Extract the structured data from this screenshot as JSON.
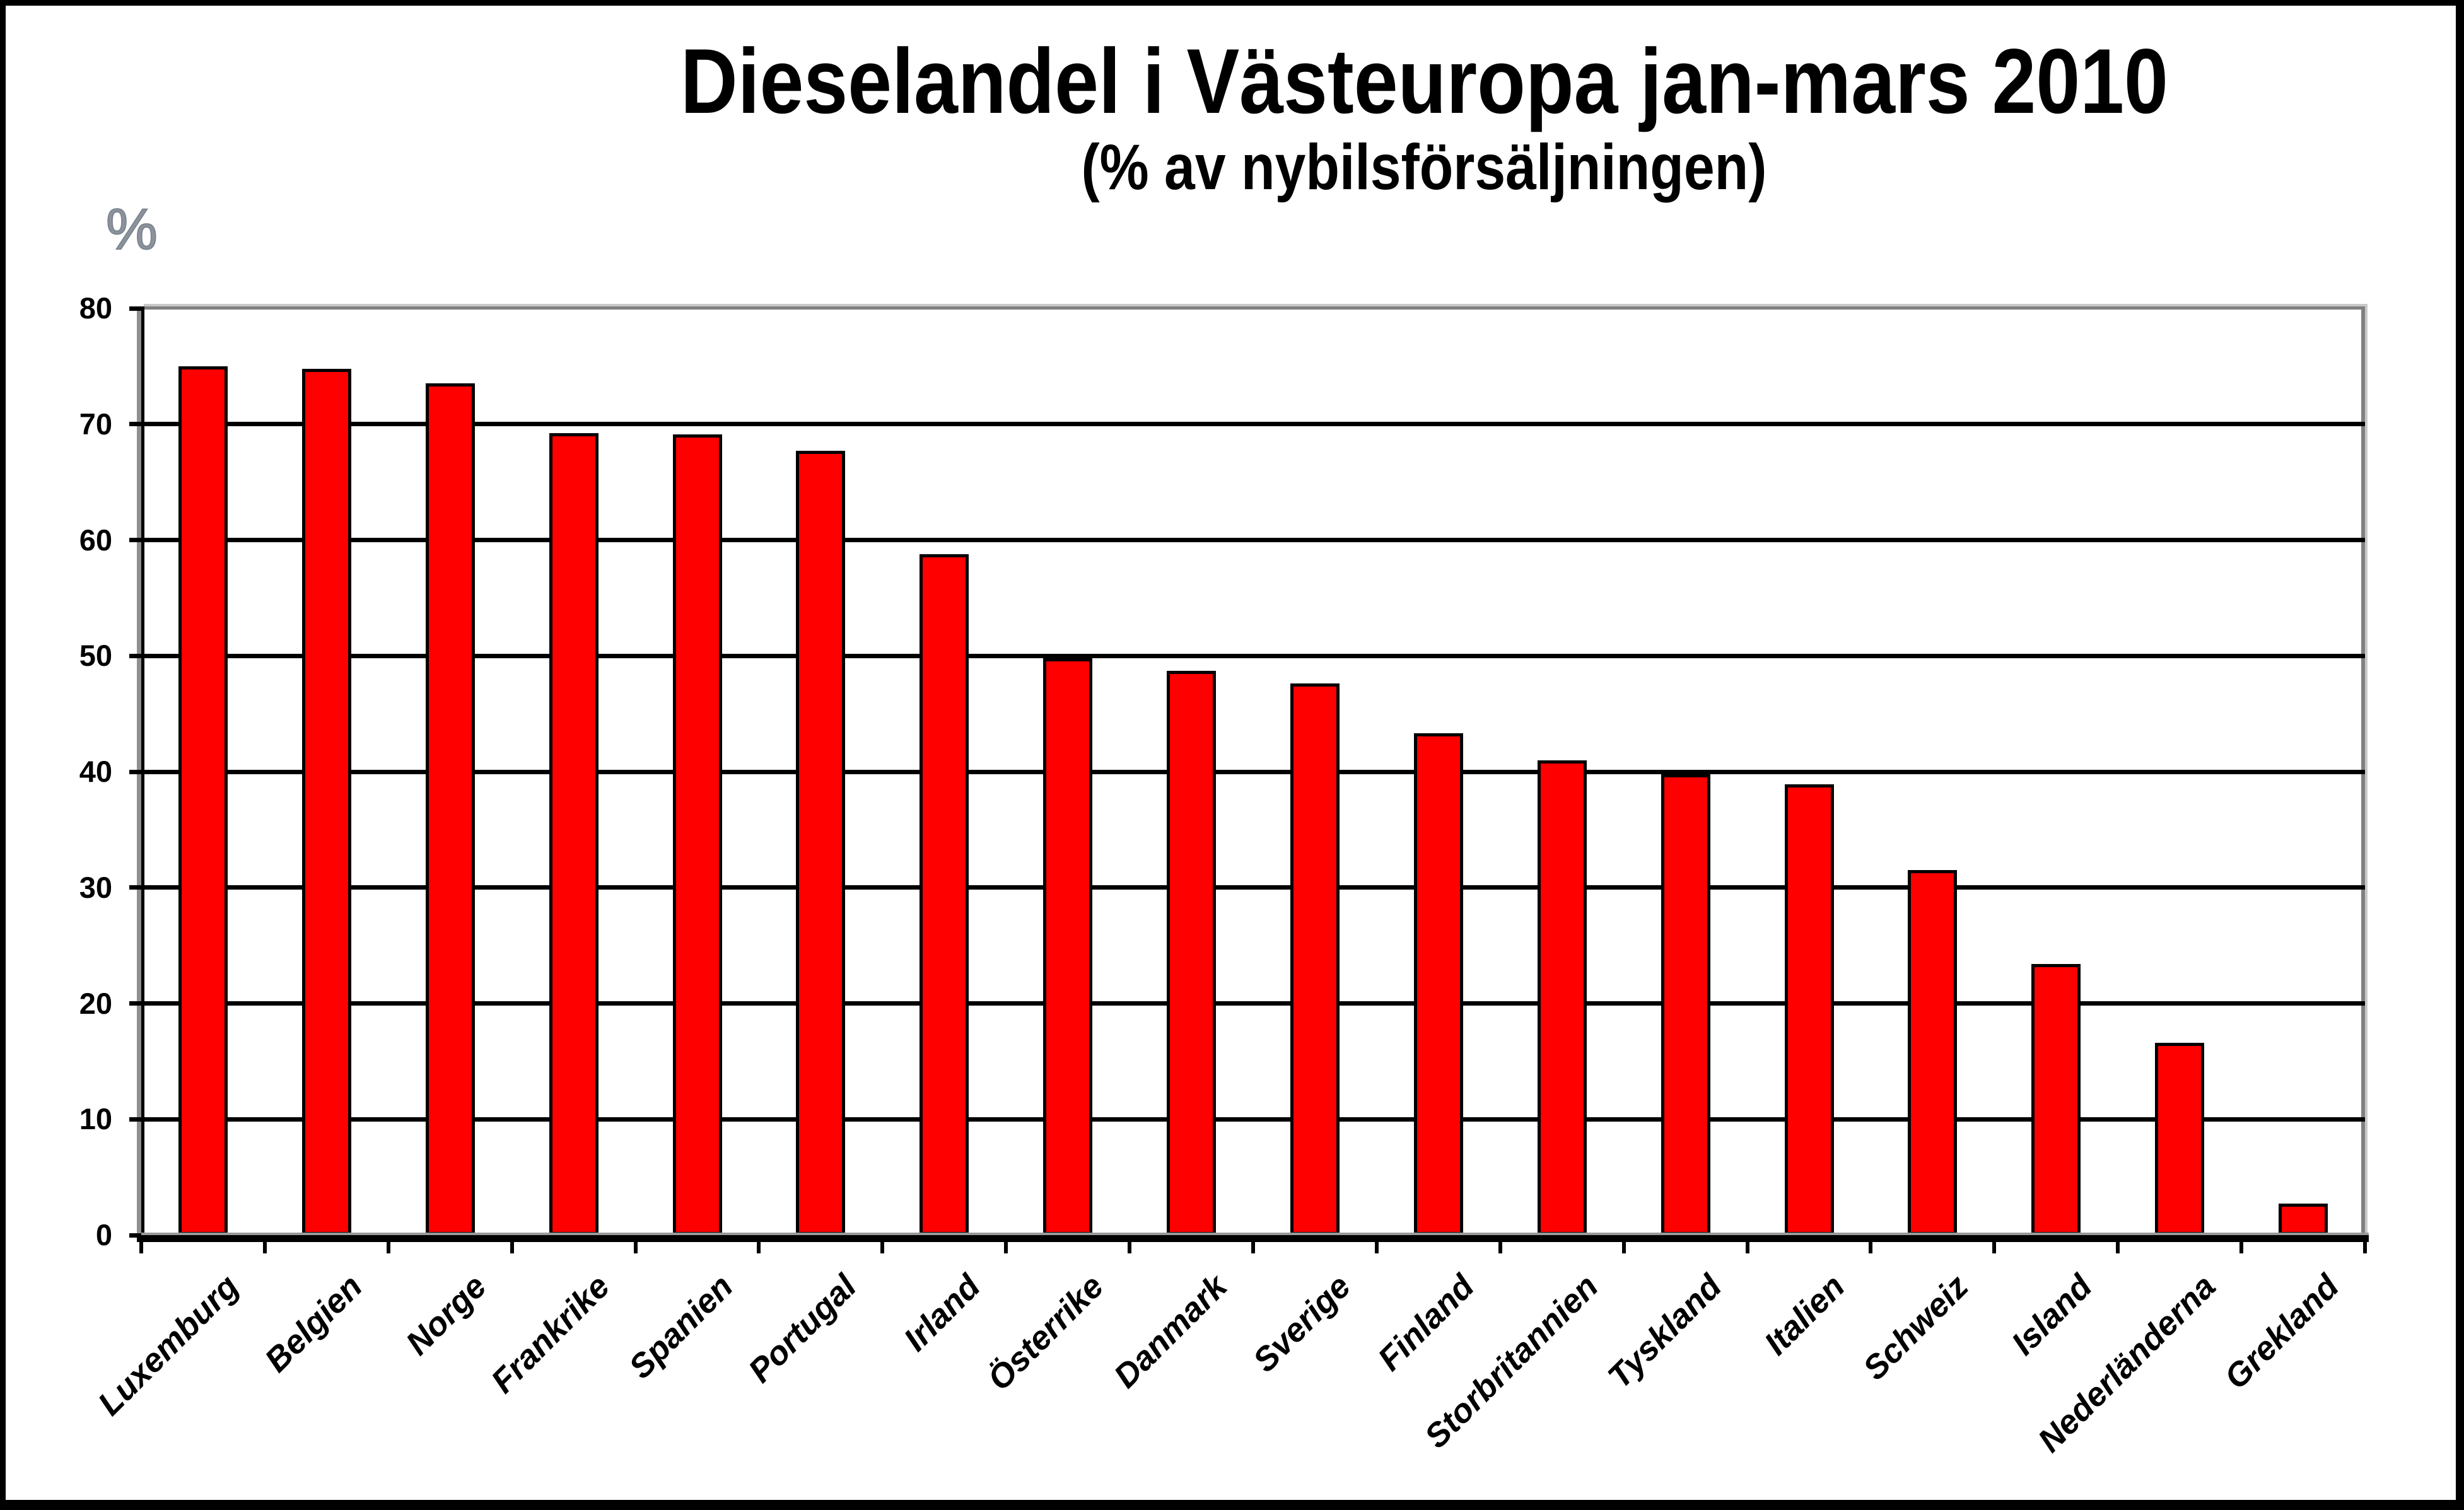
{
  "title": "Dieselandel i Västeuropa jan-mars 2010",
  "subtitle": "(% av nybilsförsäljningen)",
  "y_unit_label": "%",
  "colors": {
    "bar_fill": "#FE0000",
    "bar_border": "#000000",
    "gridline": "#000000",
    "plot_border_gray": "#808080",
    "plot_shadow_gray": "#C8C8C8",
    "axis_black": "#000000",
    "background": "#FFFFFF",
    "frame": "#000000"
  },
  "chart_data": {
    "type": "bar",
    "title": "Dieselandel i Västeuropa jan-mars 2010",
    "subtitle": "(% av nybilsförsäljningen)",
    "ylabel": "%",
    "xlabel": "",
    "ylim": [
      0,
      80
    ],
    "yticks": [
      0,
      10,
      20,
      30,
      40,
      50,
      60,
      70,
      80
    ],
    "grid": true,
    "legend": false,
    "bar_color": "#FE0000",
    "categories": [
      "Luxemburg",
      "Belgien",
      "Norge",
      "Frankrike",
      "Spanien",
      "Portugal",
      "Irland",
      "Österrike",
      "Danmark",
      "Sverige",
      "Finland",
      "Storbritannien",
      "Tyskland",
      "Italien",
      "Schweiz",
      "Island",
      "Nederländerna",
      "Grekland"
    ],
    "values": [
      75.0,
      74.8,
      73.5,
      69.2,
      69.1,
      67.7,
      58.8,
      49.8,
      48.7,
      47.6,
      43.3,
      41.0,
      39.8,
      38.9,
      31.5,
      23.4,
      16.6,
      2.7
    ]
  }
}
